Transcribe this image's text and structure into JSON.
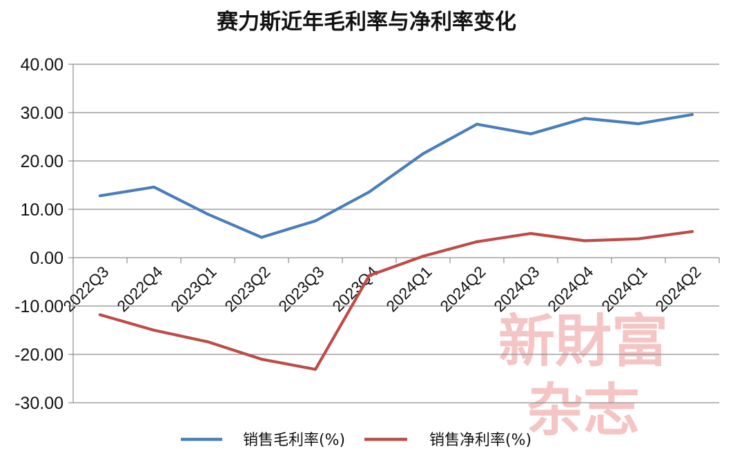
{
  "chart_data": {
    "type": "line",
    "title": "赛力斯近年毛利率与净利率变化",
    "categories": [
      "2022Q3",
      "2022Q4",
      "2023Q1",
      "2023Q2",
      "2023Q3",
      "2023Q4",
      "2024Q1",
      "2024Q2",
      "2024Q3",
      "2024Q4",
      "2024Q1",
      "2024Q2"
    ],
    "series": [
      {
        "name": "销售毛利率(%)",
        "color": "#4a7ebb",
        "values": [
          12.8,
          14.6,
          9.0,
          4.2,
          7.6,
          13.6,
          21.5,
          27.6,
          25.6,
          28.8,
          27.7,
          29.6
        ]
      },
      {
        "name": "销售净利率(%)",
        "color": "#be4b48",
        "values": [
          -11.8,
          -15.0,
          -17.4,
          -21.0,
          -23.1,
          -3.7,
          0.3,
          3.3,
          5.0,
          3.5,
          3.9,
          5.4
        ]
      }
    ],
    "ylim": [
      -30,
      40
    ],
    "yticks": [
      "-30.00",
      "-20.00",
      "-10.00",
      "0.00",
      "10.00",
      "20.00",
      "30.00",
      "40.00"
    ],
    "grid": true,
    "legend": "bottom",
    "watermark": [
      "新財富",
      "杂志"
    ]
  }
}
